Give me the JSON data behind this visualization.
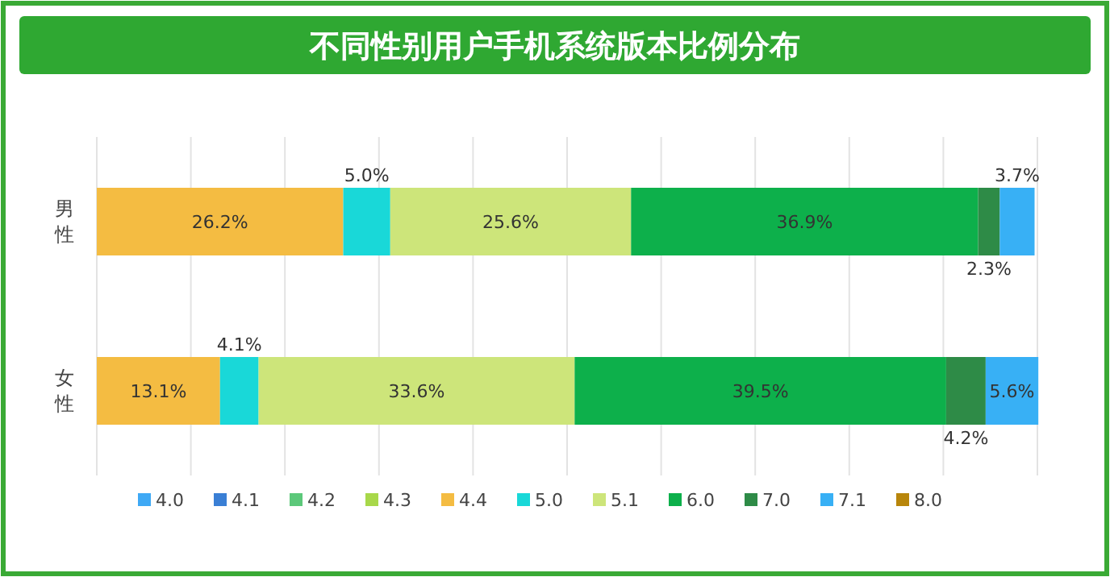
{
  "chart_data": {
    "type": "bar",
    "orientation": "horizontal",
    "stacked": true,
    "title": "不同性别用户手机系统版本比例分布",
    "categories": [
      "男性",
      "女性"
    ],
    "xlim": [
      0,
      100
    ],
    "xticks": [
      {
        "value": 0,
        "label": null
      },
      {
        "value": 10,
        "label": null
      },
      {
        "value": 20,
        "label": null
      },
      {
        "value": 30,
        "label": null
      },
      {
        "value": 40,
        "label": null
      },
      {
        "value": 50,
        "label": null
      },
      {
        "value": 60,
        "label": null
      },
      {
        "value": 70,
        "label": null
      },
      {
        "value": 80,
        "label": null
      },
      {
        "value": 90,
        "label": null
      },
      {
        "value": 100,
        "label": null
      }
    ],
    "tick_labels": "y",
    "grid": "x",
    "legend": "bottom",
    "series": [
      {
        "name": "4.0",
        "color": "#3fa9f5",
        "values": [
          null,
          null
        ],
        "value_labels": [
          null,
          null
        ]
      },
      {
        "name": "4.1",
        "color": "#3a7fd5",
        "values": [
          null,
          null
        ],
        "value_labels": [
          null,
          null
        ]
      },
      {
        "name": "4.2",
        "color": "#5cc87a",
        "values": [
          null,
          null
        ],
        "value_labels": [
          null,
          null
        ]
      },
      {
        "name": "4.3",
        "color": "#a8d84a",
        "values": [
          null,
          null
        ],
        "value_labels": [
          null,
          null
        ]
      },
      {
        "name": "4.4",
        "color": "#f4bc42",
        "values": [
          26.2,
          13.1
        ],
        "value_labels": [
          "26.2%",
          "13.1%"
        ]
      },
      {
        "name": "5.0",
        "color": "#19d8d8",
        "values": [
          5.0,
          4.1
        ],
        "value_labels": [
          "5.0%",
          "4.1%"
        ]
      },
      {
        "name": "5.1",
        "color": "#cde57a",
        "values": [
          25.6,
          33.6
        ],
        "value_labels": [
          "25.6%",
          "33.6%"
        ]
      },
      {
        "name": "6.0",
        "color": "#0db04b",
        "values": [
          36.9,
          39.5
        ],
        "value_labels": [
          "36.9%",
          "39.5%"
        ]
      },
      {
        "name": "7.0",
        "color": "#2e8b47",
        "values": [
          2.3,
          4.2
        ],
        "value_labels": [
          "2.3%",
          "4.2%"
        ]
      },
      {
        "name": "7.1",
        "color": "#38b0f5",
        "values": [
          3.7,
          5.6
        ],
        "value_labels": [
          "3.7%",
          "5.6%"
        ]
      },
      {
        "name": "8.0",
        "color": "#b8860b",
        "values": [
          null,
          null
        ],
        "value_labels": [
          null,
          null
        ]
      }
    ]
  }
}
